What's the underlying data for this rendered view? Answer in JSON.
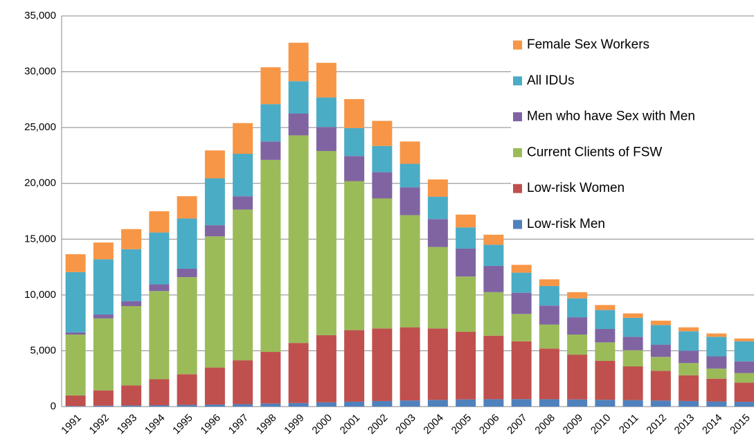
{
  "chart_data": {
    "type": "stacked_bar",
    "categories": [
      "1991",
      "1992",
      "1993",
      "1994",
      "1995",
      "1996",
      "1997",
      "1998",
      "1999",
      "2000",
      "2001",
      "2002",
      "2003",
      "2004",
      "2005",
      "2006",
      "2007",
      "2008",
      "2009",
      "2010",
      "2011",
      "2012",
      "2013",
      "2014",
      "2015"
    ],
    "series": [
      {
        "name": "Low-risk Men",
        "color": "#4f81bd",
        "values": [
          50,
          80,
          100,
          120,
          150,
          180,
          220,
          270,
          320,
          380,
          440,
          500,
          550,
          600,
          640,
          660,
          670,
          660,
          640,
          610,
          580,
          540,
          500,
          460,
          430
        ]
      },
      {
        "name": "Low-risk Women",
        "color": "#c0504d",
        "values": [
          950,
          1370,
          1800,
          2330,
          2750,
          3320,
          3930,
          4630,
          5380,
          6020,
          6410,
          6500,
          6550,
          6400,
          6060,
          5690,
          5180,
          4540,
          4010,
          3490,
          3020,
          2660,
          2300,
          2040,
          1720
        ]
      },
      {
        "name": "Current Clients of FSW",
        "color": "#9bbb59",
        "values": [
          5450,
          6450,
          7100,
          7900,
          8700,
          11750,
          13500,
          17200,
          18600,
          16500,
          13350,
          11650,
          10050,
          7300,
          4950,
          3900,
          2450,
          2150,
          1800,
          1650,
          1450,
          1250,
          1100,
          900,
          850
        ]
      },
      {
        "name": "Men who have Sex with Men",
        "color": "#8064a2",
        "values": [
          200,
          350,
          450,
          600,
          750,
          1000,
          1200,
          1650,
          1950,
          2150,
          2250,
          2350,
          2500,
          2500,
          2500,
          2350,
          1900,
          1700,
          1550,
          1200,
          1200,
          1100,
          1100,
          1100,
          1050
        ]
      },
      {
        "name": "All IDUs",
        "color": "#4bacc6",
        "values": [
          5400,
          4950,
          4650,
          4650,
          4500,
          4200,
          3800,
          3350,
          2900,
          2650,
          2500,
          2350,
          2100,
          2000,
          1900,
          1900,
          1800,
          1750,
          1700,
          1700,
          1700,
          1750,
          1750,
          1750,
          1800
        ]
      },
      {
        "name": "Female Sex Workers",
        "color": "#f79646",
        "values": [
          1600,
          1500,
          1800,
          1900,
          2000,
          2500,
          2750,
          3300,
          3450,
          3100,
          2600,
          2250,
          2000,
          1550,
          1150,
          900,
          700,
          600,
          550,
          450,
          400,
          400,
          350,
          300,
          250
        ]
      }
    ],
    "ylim": [
      0,
      35000
    ],
    "yticks": [
      0,
      {
        "value": 5000,
        "label": "5,000"
      },
      {
        "value": 10000,
        "label": "10,000"
      },
      {
        "value": 15000,
        "label": "15,000"
      },
      {
        "value": 20000,
        "label": "20,000"
      },
      {
        "value": 25000,
        "label": "25,000"
      },
      {
        "value": 30000,
        "label": "30,000"
      },
      {
        "value": 35000,
        "label": "35,000"
      }
    ],
    "grid": true
  }
}
